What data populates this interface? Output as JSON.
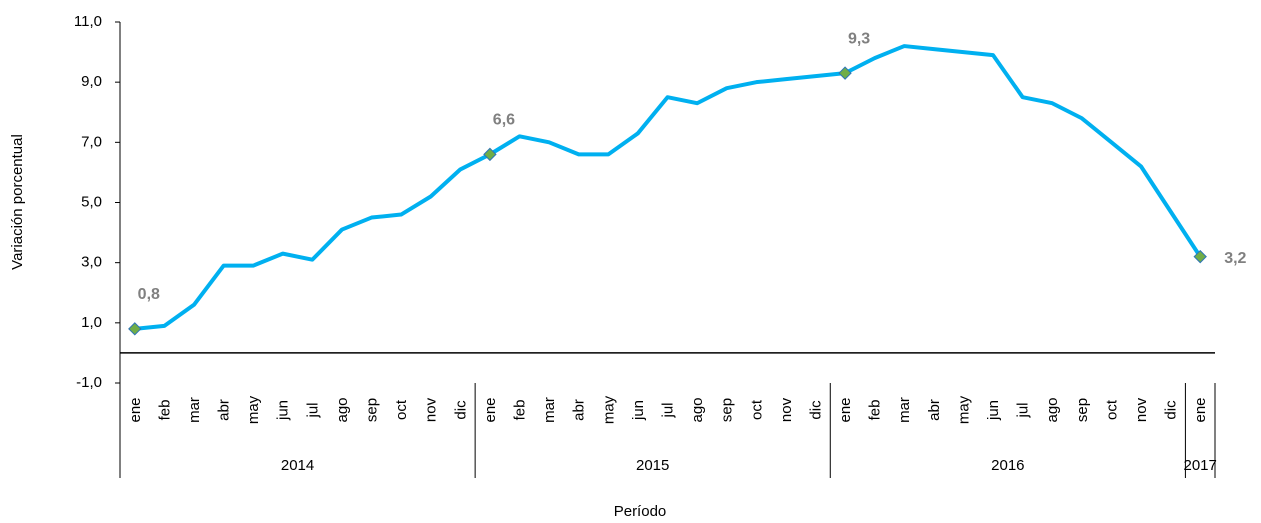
{
  "chart_data": {
    "type": "line",
    "y_label": "Variación porcentual",
    "x_label": "Período",
    "categories": [
      "ene",
      "feb",
      "mar",
      "abr",
      "may",
      "jun",
      "jul",
      "ago",
      "sep",
      "oct",
      "nov",
      "dic",
      "ene",
      "feb",
      "mar",
      "abr",
      "may",
      "jun",
      "jul",
      "ago",
      "sep",
      "oct",
      "nov",
      "dic",
      "ene",
      "feb",
      "mar",
      "abr",
      "may",
      "jun",
      "jul",
      "ago",
      "sep",
      "oct",
      "nov",
      "dic",
      "ene"
    ],
    "years": [
      "2014",
      "2015",
      "2016",
      "2017"
    ],
    "series": [
      {
        "color": "#00b0f0",
        "marker_color": "#70ad47",
        "values": [
          0.8,
          0.9,
          1.6,
          2.9,
          2.9,
          3.3,
          3.1,
          4.1,
          4.5,
          4.6,
          5.2,
          6.1,
          6.6,
          7.2,
          7.0,
          6.6,
          6.6,
          7.3,
          8.5,
          8.3,
          8.8,
          9.0,
          9.1,
          9.2,
          9.3,
          9.8,
          10.2,
          10.1,
          10.0,
          9.9,
          8.5,
          8.3,
          7.8,
          7.0,
          6.2,
          4.7,
          3.2
        ],
        "value_labels": [
          "0,8",
          null,
          null,
          null,
          null,
          null,
          null,
          null,
          null,
          null,
          null,
          null,
          "6,6",
          null,
          null,
          null,
          null,
          null,
          null,
          null,
          null,
          null,
          null,
          null,
          "9,3",
          null,
          null,
          null,
          null,
          null,
          null,
          null,
          null,
          null,
          null,
          null,
          "3,2"
        ]
      }
    ],
    "ylim": [
      -1,
      11
    ],
    "yticks": [
      {
        "value": -1,
        "label": "-1,0"
      },
      {
        "value": 1,
        "label": "1,0"
      },
      {
        "value": 3,
        "label": "3,0"
      },
      {
        "value": 5,
        "label": "5,0"
      },
      {
        "value": 7,
        "label": "7,0"
      },
      {
        "value": 9,
        "label": "9,0"
      },
      {
        "value": 11,
        "label": "11,0"
      }
    ]
  }
}
